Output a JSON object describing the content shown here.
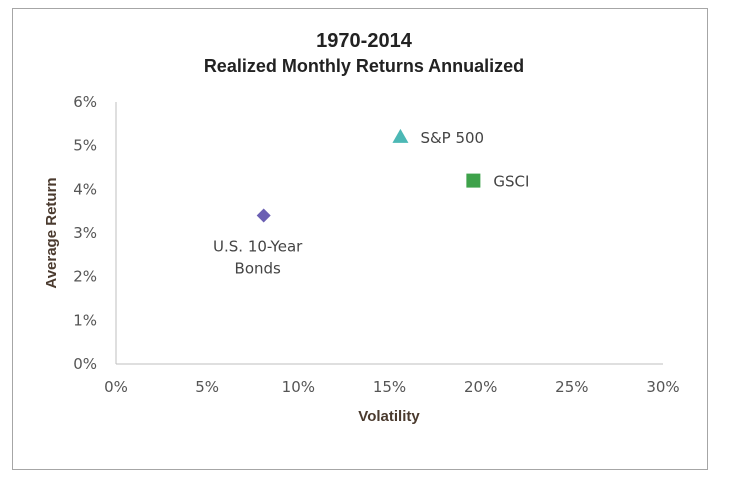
{
  "chart_data": {
    "type": "scatter",
    "title": "1970-2014",
    "subtitle": "Realized Monthly Returns Annualized",
    "xlabel": "Volatility",
    "ylabel": "Average Return",
    "xlim": [
      0,
      30
    ],
    "ylim": [
      0,
      6
    ],
    "x_ticks": [
      "0%",
      "5%",
      "10%",
      "15%",
      "20%",
      "25%",
      "30%"
    ],
    "y_ticks": [
      "0%",
      "1%",
      "2%",
      "3%",
      "4%",
      "5%",
      "6%"
    ],
    "grid": false,
    "points": [
      {
        "label_lines": [
          "U.S. 10-Year",
          "Bonds"
        ],
        "x": 8.1,
        "y": 3.4,
        "marker": "diamond",
        "color": "#6b5fb3"
      },
      {
        "label_lines": [
          "S&P 500"
        ],
        "x": 15.6,
        "y": 5.2,
        "marker": "triangle",
        "color": "#4cb8b5"
      },
      {
        "label_lines": [
          "GSCI"
        ],
        "x": 19.6,
        "y": 4.2,
        "marker": "square",
        "color": "#3ea24a"
      }
    ]
  }
}
